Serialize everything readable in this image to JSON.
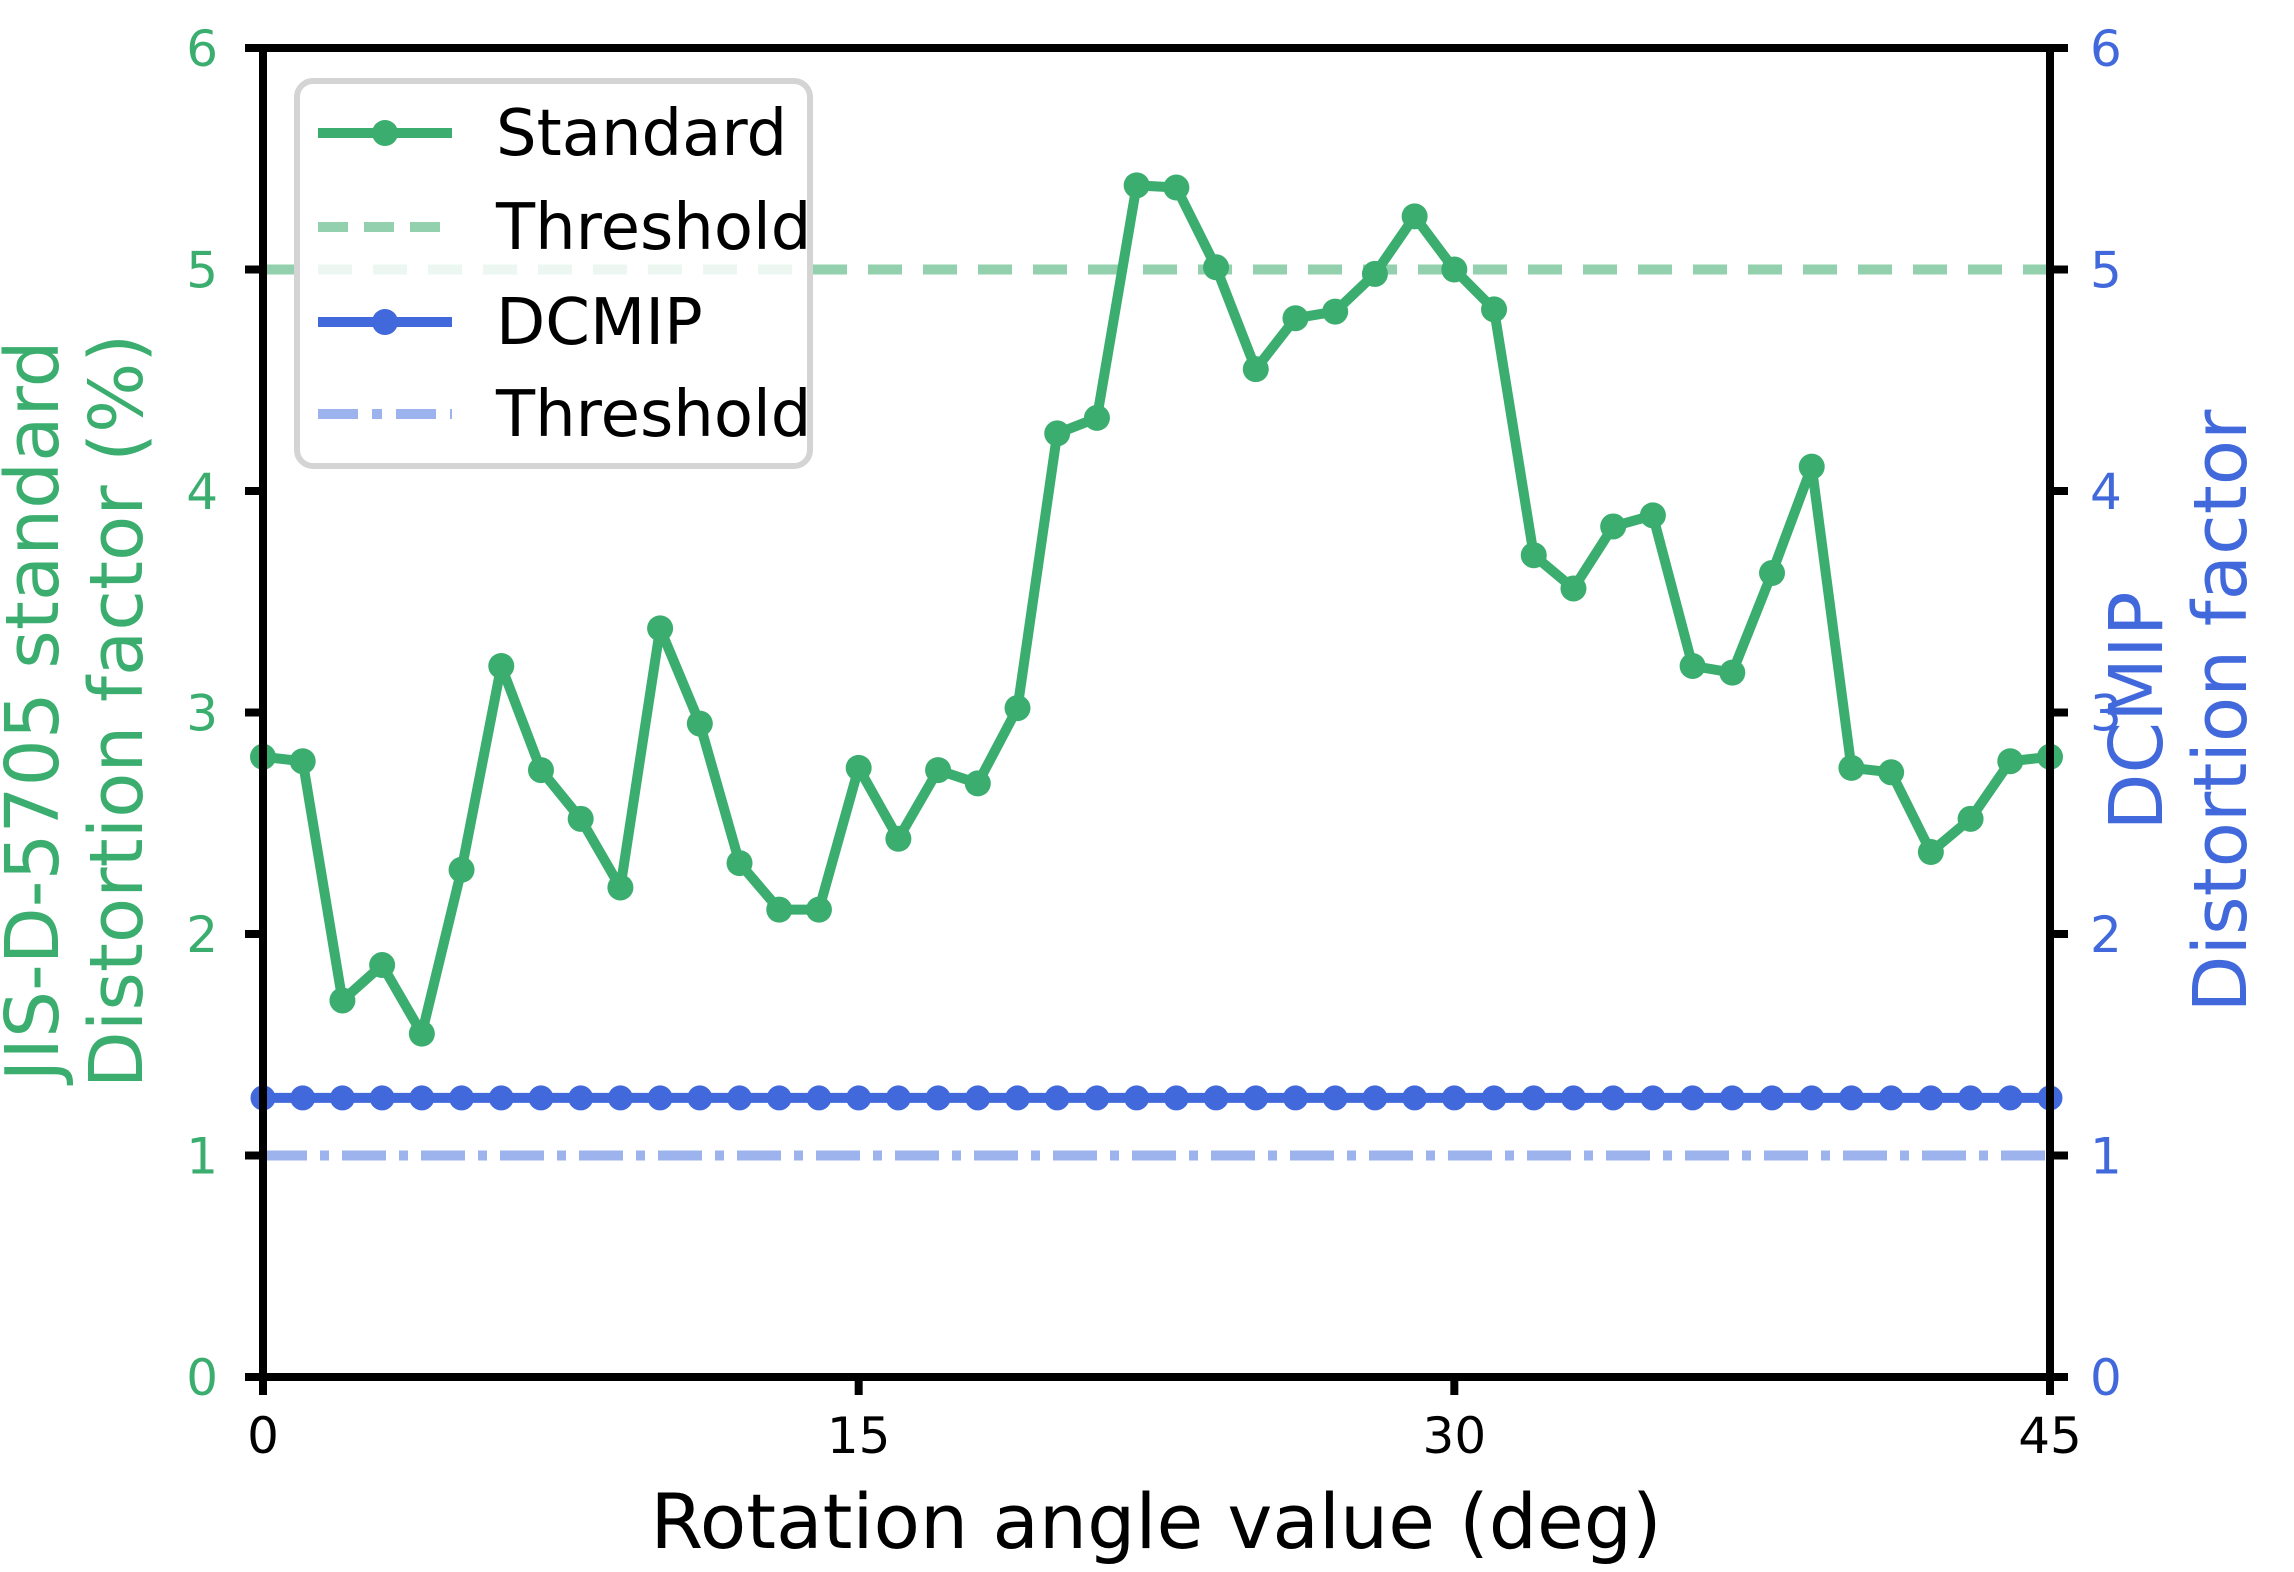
{
  "chart_data": {
    "type": "line",
    "title": "",
    "xlabel": "Rotation angle value (deg)",
    "ylabel_left": [
      "JIS-D-5705 standard",
      "Distortion factor (%)"
    ],
    "ylabel_right": [
      "DCMIP",
      "Distortion factor"
    ],
    "xlim": [
      0,
      45
    ],
    "ylim_left": [
      0,
      6
    ],
    "ylim_right": [
      0,
      6
    ],
    "xticks": [
      0,
      15,
      30,
      45
    ],
    "yticks_left": [
      0,
      1,
      2,
      3,
      4,
      5,
      6
    ],
    "yticks_right": [
      0,
      1,
      2,
      3,
      4,
      5,
      6
    ],
    "grid": false,
    "legend_position": "upper left",
    "axis_colors": {
      "left": "#3bae6f",
      "right": "#4169dc",
      "bottom": "#000000"
    },
    "x": [
      0,
      1,
      2,
      3,
      4,
      5,
      6,
      7,
      8,
      9,
      10,
      11,
      12,
      13,
      14,
      15,
      16,
      17,
      18,
      19,
      20,
      21,
      22,
      23,
      24,
      25,
      26,
      27,
      28,
      29,
      30,
      31,
      32,
      33,
      34,
      35,
      36,
      37,
      38,
      39,
      40,
      41,
      42,
      43,
      44,
      45
    ],
    "series": [
      {
        "name": "Standard",
        "axis": "left",
        "style": "solid-marker",
        "color": "#3bae6f",
        "values": [
          2.8,
          2.78,
          1.7,
          1.86,
          1.55,
          2.29,
          3.21,
          2.74,
          2.52,
          2.21,
          3.38,
          2.95,
          2.32,
          2.11,
          2.11,
          2.75,
          2.43,
          2.74,
          2.68,
          3.02,
          4.26,
          4.33,
          5.38,
          5.37,
          5.01,
          4.55,
          4.78,
          4.81,
          4.98,
          5.24,
          5.0,
          4.82,
          3.71,
          3.56,
          3.84,
          3.89,
          3.21,
          3.18,
          3.63,
          4.11,
          2.75,
          2.73,
          2.37,
          2.52,
          2.78,
          2.8
        ]
      },
      {
        "name": "Threshold",
        "axis": "left",
        "style": "dashed",
        "color": "#92d0ae",
        "value": 5.0
      },
      {
        "name": "DCMIP",
        "axis": "right",
        "style": "solid-marker",
        "color": "#4169dc",
        "constant": 1.26,
        "values": [
          1.26,
          1.26,
          1.26,
          1.26,
          1.26,
          1.26,
          1.26,
          1.26,
          1.26,
          1.26,
          1.26,
          1.26,
          1.26,
          1.26,
          1.26,
          1.26,
          1.26,
          1.26,
          1.26,
          1.26,
          1.26,
          1.26,
          1.26,
          1.26,
          1.26,
          1.26,
          1.26,
          1.26,
          1.26,
          1.26,
          1.26,
          1.26,
          1.26,
          1.26,
          1.26,
          1.26,
          1.26,
          1.26,
          1.26,
          1.26,
          1.26,
          1.26,
          1.26,
          1.26,
          1.26,
          1.26
        ]
      },
      {
        "name": "Threshold",
        "axis": "right",
        "style": "dashdot",
        "color": "#9db3ee",
        "value": 1.0
      }
    ],
    "legend": {
      "entries": [
        {
          "label": "Standard"
        },
        {
          "label": "Threshold"
        },
        {
          "label": "DCMIP"
        },
        {
          "label": "Threshold"
        }
      ]
    }
  }
}
